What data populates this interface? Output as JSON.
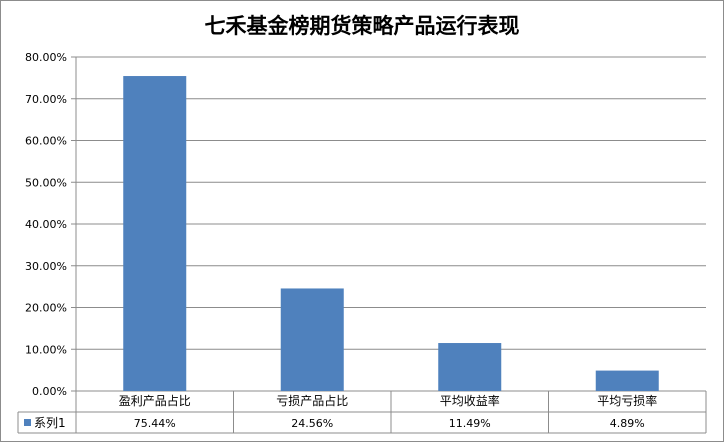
{
  "chart_data": {
    "type": "bar",
    "title": "七禾基金榜期货策略产品运行表现",
    "categories": [
      "盈利产品占比",
      "亏损产品占比",
      "平均收益率",
      "平均亏损率"
    ],
    "series": [
      {
        "name": "系列1",
        "values": [
          75.44,
          24.56,
          11.49,
          4.89
        ],
        "labels": [
          "75.44%",
          "24.56%",
          "11.49%",
          "4.89%"
        ],
        "color": "#4f81bd"
      }
    ],
    "ylim": [
      0,
      80
    ],
    "yticks": [
      "0.00%",
      "10.00%",
      "20.00%",
      "30.00%",
      "40.00%",
      "50.00%",
      "60.00%",
      "70.00%",
      "80.00%"
    ],
    "grid": true,
    "data_table": true
  }
}
